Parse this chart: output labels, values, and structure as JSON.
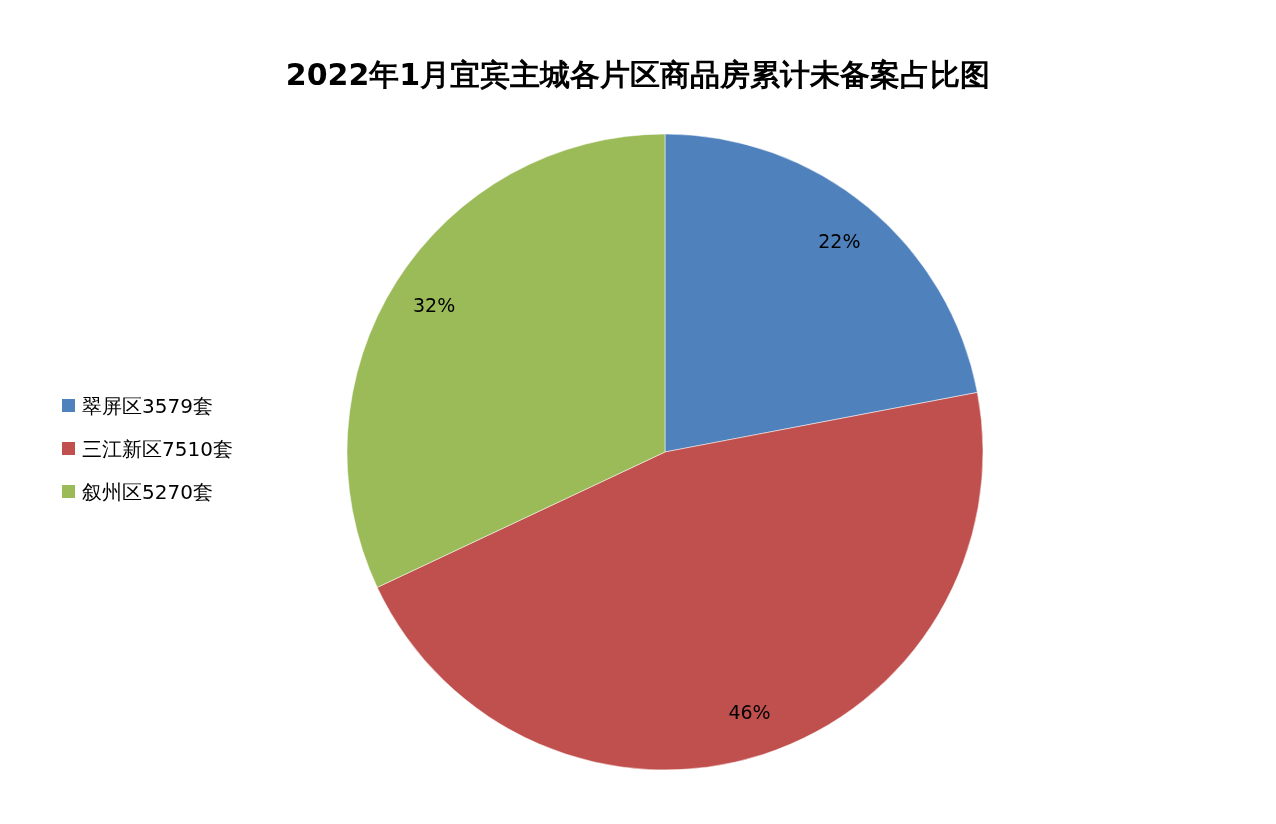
{
  "chart_data": {
    "type": "pie",
    "title": "2022年1月宜宾主城各片区商品房累计未备案占比图",
    "categories": [
      "翠屏区3579套",
      "三江新区7510套",
      "叙州区5270套"
    ],
    "values": [
      22,
      46,
      32
    ],
    "colors": [
      "#4f81bd",
      "#c0504d",
      "#9bbb59"
    ],
    "value_labels": [
      "22%",
      "46%",
      "32%"
    ],
    "legend": "left"
  }
}
